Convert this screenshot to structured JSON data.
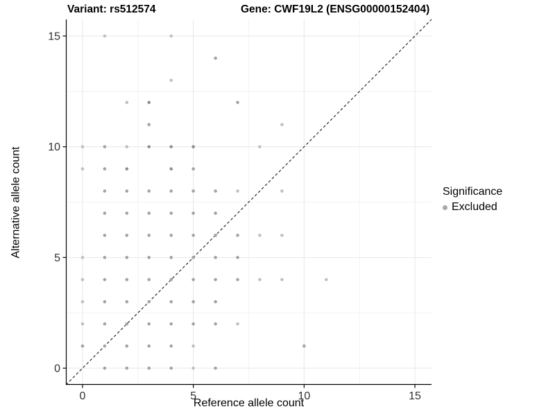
{
  "titles": {
    "variant": "Variant: rs512574",
    "gene": "Gene: CWF19L2 (ENSG00000152404)"
  },
  "legend": {
    "title": "Significance",
    "items": [
      {
        "label": "Excluded",
        "color": "#a8a8a8"
      }
    ]
  },
  "chart_data": {
    "type": "scatter",
    "title": "Variant: rs512574  /  Gene: CWF19L2 (ENSG00000152404)",
    "xlabel": "Reference allele count",
    "ylabel": "Alternative allele count",
    "xlim": [
      -0.75,
      15.75
    ],
    "ylim": [
      -0.75,
      15.75
    ],
    "x_ticks": [
      0,
      5,
      10,
      15
    ],
    "y_ticks": [
      0,
      5,
      10,
      15
    ],
    "minor_gridlines": [
      2.5,
      7.5,
      12.5
    ],
    "grid": "on",
    "legend_position": "right",
    "identity_line": {
      "style": "dashed",
      "from": [
        -0.75,
        -0.75
      ],
      "to": [
        15.75,
        15.75
      ],
      "color": "#1a1a1a"
    },
    "colors": {
      "major_grid": "#e7e7e7",
      "minor_grid": "#f2f2f2",
      "axis_line": "#000000",
      "tick_label": "#303030"
    },
    "point_shades": {
      "1": "#c0c0c0",
      "2": "#a3a3a3",
      "3": "#8f8f8f"
    },
    "point_radius": 2.3,
    "series_name": "Excluded",
    "points": [
      {
        "x": 1,
        "y": 15,
        "s": 1
      },
      {
        "x": 4,
        "y": 15,
        "s": 1
      },
      {
        "x": 6,
        "y": 14,
        "s": 2
      },
      {
        "x": 4,
        "y": 13,
        "s": 1
      },
      {
        "x": 2,
        "y": 12,
        "s": 1
      },
      {
        "x": 3,
        "y": 12,
        "s": 3
      },
      {
        "x": 7,
        "y": 12,
        "s": 2
      },
      {
        "x": 3,
        "y": 11,
        "s": 2
      },
      {
        "x": 9,
        "y": 11,
        "s": 1
      },
      {
        "x": 0,
        "y": 10,
        "s": 1
      },
      {
        "x": 1,
        "y": 10,
        "s": 2
      },
      {
        "x": 2,
        "y": 10,
        "s": 1
      },
      {
        "x": 3,
        "y": 10,
        "s": 3
      },
      {
        "x": 4,
        "y": 10,
        "s": 3
      },
      {
        "x": 5,
        "y": 10,
        "s": 3
      },
      {
        "x": 8,
        "y": 10,
        "s": 1
      },
      {
        "x": 0,
        "y": 9,
        "s": 1
      },
      {
        "x": 1,
        "y": 9,
        "s": 2
      },
      {
        "x": 2,
        "y": 9,
        "s": 3
      },
      {
        "x": 4,
        "y": 9,
        "s": 3
      },
      {
        "x": 5,
        "y": 9,
        "s": 2
      },
      {
        "x": 1,
        "y": 8,
        "s": 2
      },
      {
        "x": 2,
        "y": 8,
        "s": 2
      },
      {
        "x": 3,
        "y": 8,
        "s": 2
      },
      {
        "x": 4,
        "y": 8,
        "s": 2
      },
      {
        "x": 5,
        "y": 8,
        "s": 2
      },
      {
        "x": 6,
        "y": 8,
        "s": 2
      },
      {
        "x": 7,
        "y": 8,
        "s": 1
      },
      {
        "x": 9,
        "y": 8,
        "s": 1
      },
      {
        "x": 1,
        "y": 7,
        "s": 2
      },
      {
        "x": 2,
        "y": 7,
        "s": 2
      },
      {
        "x": 3,
        "y": 7,
        "s": 2
      },
      {
        "x": 4,
        "y": 7,
        "s": 2
      },
      {
        "x": 5,
        "y": 7,
        "s": 2
      },
      {
        "x": 6,
        "y": 7,
        "s": 2
      },
      {
        "x": 1,
        "y": 6,
        "s": 2
      },
      {
        "x": 2,
        "y": 6,
        "s": 2
      },
      {
        "x": 3,
        "y": 6,
        "s": 2
      },
      {
        "x": 4,
        "y": 6,
        "s": 2
      },
      {
        "x": 5,
        "y": 6,
        "s": 2
      },
      {
        "x": 6,
        "y": 6,
        "s": 2
      },
      {
        "x": 7,
        "y": 6,
        "s": 2
      },
      {
        "x": 8,
        "y": 6,
        "s": 1
      },
      {
        "x": 9,
        "y": 6,
        "s": 1
      },
      {
        "x": 0,
        "y": 5,
        "s": 1
      },
      {
        "x": 1,
        "y": 5,
        "s": 2
      },
      {
        "x": 2,
        "y": 5,
        "s": 2
      },
      {
        "x": 3,
        "y": 5,
        "s": 2
      },
      {
        "x": 4,
        "y": 5,
        "s": 2
      },
      {
        "x": 5,
        "y": 5,
        "s": 2
      },
      {
        "x": 6,
        "y": 5,
        "s": 2
      },
      {
        "x": 7,
        "y": 5,
        "s": 2
      },
      {
        "x": 0,
        "y": 4,
        "s": 1
      },
      {
        "x": 1,
        "y": 4,
        "s": 2
      },
      {
        "x": 2,
        "y": 4,
        "s": 2
      },
      {
        "x": 3,
        "y": 4,
        "s": 2
      },
      {
        "x": 4,
        "y": 4,
        "s": 2
      },
      {
        "x": 5,
        "y": 4,
        "s": 2
      },
      {
        "x": 6,
        "y": 4,
        "s": 2
      },
      {
        "x": 7,
        "y": 4,
        "s": 2
      },
      {
        "x": 8,
        "y": 4,
        "s": 1
      },
      {
        "x": 9,
        "y": 4,
        "s": 1
      },
      {
        "x": 11,
        "y": 4,
        "s": 1
      },
      {
        "x": 0,
        "y": 3,
        "s": 1
      },
      {
        "x": 1,
        "y": 3,
        "s": 2
      },
      {
        "x": 2,
        "y": 3,
        "s": 2
      },
      {
        "x": 3,
        "y": 3,
        "s": 2
      },
      {
        "x": 4,
        "y": 3,
        "s": 2
      },
      {
        "x": 5,
        "y": 3,
        "s": 2
      },
      {
        "x": 6,
        "y": 3,
        "s": 2
      },
      {
        "x": 0,
        "y": 2,
        "s": 1
      },
      {
        "x": 1,
        "y": 2,
        "s": 2
      },
      {
        "x": 2,
        "y": 2,
        "s": 2
      },
      {
        "x": 3,
        "y": 2,
        "s": 2
      },
      {
        "x": 4,
        "y": 2,
        "s": 2
      },
      {
        "x": 5,
        "y": 2,
        "s": 2
      },
      {
        "x": 6,
        "y": 2,
        "s": 2
      },
      {
        "x": 7,
        "y": 2,
        "s": 1
      },
      {
        "x": 0,
        "y": 1,
        "s": 2
      },
      {
        "x": 1,
        "y": 1,
        "s": 2
      },
      {
        "x": 2,
        "y": 1,
        "s": 2
      },
      {
        "x": 3,
        "y": 1,
        "s": 2
      },
      {
        "x": 4,
        "y": 1,
        "s": 2
      },
      {
        "x": 5,
        "y": 1,
        "s": 1
      },
      {
        "x": 10,
        "y": 1,
        "s": 2
      },
      {
        "x": 1,
        "y": 0,
        "s": 2
      },
      {
        "x": 2,
        "y": 0,
        "s": 2
      },
      {
        "x": 3,
        "y": 0,
        "s": 2
      },
      {
        "x": 4,
        "y": 0,
        "s": 2
      },
      {
        "x": 5,
        "y": 0,
        "s": 1
      },
      {
        "x": 6,
        "y": 0,
        "s": 2
      }
    ]
  }
}
